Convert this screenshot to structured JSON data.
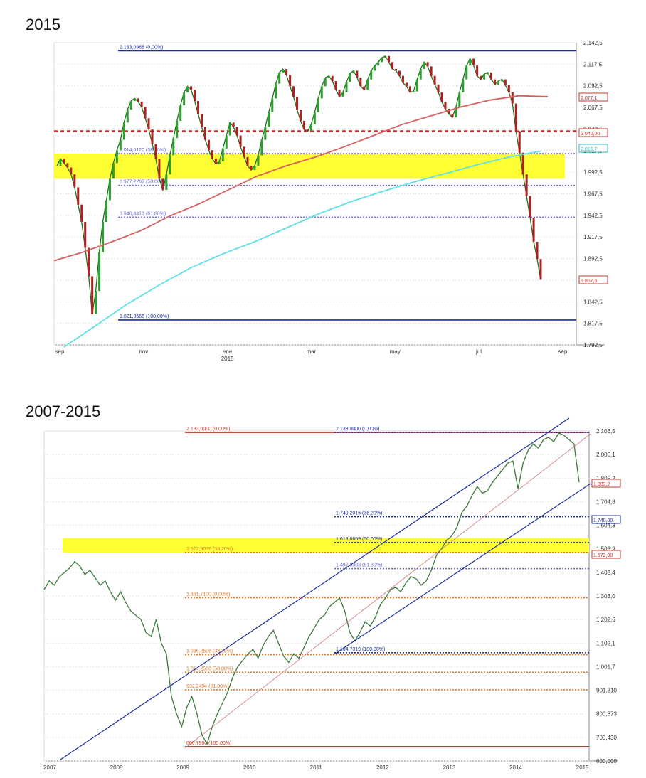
{
  "chart_data": [
    {
      "type": "line",
      "title": "2015",
      "ylim": [
        1792.5,
        2142.5
      ],
      "y_ticks": [
        "2.142,5",
        "2.117,5",
        "2.092,5",
        "2.067,5",
        "2.042,5",
        "2.017,5",
        "1.992,5",
        "1.967,5",
        "1.942,5",
        "1.917,5",
        "1.892,5",
        "1.867,5",
        "1.842,5",
        "1.817,5",
        "1.792,5"
      ],
      "x_tick_labels": [
        "sep",
        "nov",
        "ene",
        "mar",
        "may",
        "jul",
        "sep"
      ],
      "x_tick_sub": "2015",
      "fib_levels": [
        {
          "label": "2.133,0968  (0,00%)",
          "value": 2133.1,
          "color": "#1a2d9c"
        },
        {
          "label": "2.014,0120  (38,20%)",
          "value": 2014.0,
          "color": "#6b6bd6"
        },
        {
          "label": "1.977,2267  (50,00%)",
          "value": 1977.2,
          "color": "#6b6bd6"
        },
        {
          "label": "1.940,4413  (61,80%)",
          "value": 1940.4,
          "color": "#6b6bd6"
        },
        {
          "label": "1.821,3565  (100,00%)",
          "value": 1821.4,
          "color": "#1a2d9c"
        }
      ],
      "support_level": {
        "value": 2040.0,
        "color": "#d42a2a"
      },
      "highlight_band": {
        "from": 1985,
        "to": 2014,
        "color": "#ffff33"
      },
      "value_tags": [
        {
          "label": "2.077,1",
          "color": "#c0392b"
        },
        {
          "label": "2.040,00",
          "color": "#c0392b"
        },
        {
          "label": "2.016,7",
          "color": "#2bb8c8"
        },
        {
          "label": "1.867,6",
          "color": "#c0392b"
        }
      ],
      "series": [
        {
          "values": [
            2000,
            2008,
            2003,
            1998,
            1990,
            1975,
            1955,
            1935,
            1905,
            1872,
            1828,
            1855,
            1900,
            1935,
            1960,
            1985,
            2003,
            2018,
            2030,
            2050,
            2065,
            2075,
            2078,
            2074,
            2068,
            2055,
            2042,
            2025,
            2008,
            1985,
            1972,
            1990,
            2012,
            2032,
            2052,
            2070,
            2085,
            2092,
            2088,
            2075,
            2060,
            2045,
            2030,
            2018,
            2008,
            2002,
            2005,
            2020,
            2035,
            2050,
            2045,
            2035,
            2022,
            2010,
            2000,
            1995,
            2000,
            2012,
            2030,
            2045,
            2062,
            2078,
            2095,
            2108,
            2112,
            2105,
            2092,
            2080,
            2065,
            2052,
            2042,
            2040,
            2048,
            2062,
            2078,
            2092,
            2102,
            2104,
            2098,
            2088,
            2080,
            2085,
            2097,
            2107,
            2110,
            2102,
            2092,
            2088,
            2100,
            2110,
            2116,
            2120,
            2125,
            2127,
            2120,
            2112,
            2110,
            2104,
            2096,
            2092,
            2085,
            2086,
            2100,
            2112,
            2120,
            2115,
            2104,
            2094,
            2085,
            2074,
            2066,
            2060,
            2056,
            2068,
            2085,
            2100,
            2116,
            2124,
            2116,
            2104,
            2100,
            2106,
            2108,
            2100,
            2094,
            2098,
            2100,
            2093,
            2085,
            2072,
            2040,
            2015,
            1990,
            1965,
            1940,
            1912,
            1892,
            1868
          ]
        },
        {
          "values": [
            1890,
            1900,
            1912,
            1925,
            1942,
            1956,
            1972,
            1988,
            2000,
            2010,
            2022,
            2035,
            2048,
            2058,
            2068,
            2076,
            2081,
            2080
          ]
        },
        {
          "values": [
            1790,
            1815,
            1840,
            1862,
            1882,
            1898,
            1912,
            1928,
            1944,
            1958,
            1970,
            1981,
            1991,
            2001,
            2010,
            2017
          ]
        }
      ]
    },
    {
      "type": "line",
      "title": "2007-2015",
      "ylim": [
        600,
        2140
      ],
      "y_ticks": [
        "2.106,5",
        "2.006,1",
        "1.805,2",
        "1.704,8",
        "1.604,3",
        "1.503,9",
        "1.403,4",
        "1.303,0",
        "1.202,6",
        "1.102,1",
        "1.001,7",
        "901,310",
        "800,873",
        "700,430",
        "600,000"
      ],
      "x_tick_labels": [
        "2007",
        "2008",
        "2009",
        "2010",
        "2011",
        "2012",
        "2013",
        "2014",
        "2015"
      ],
      "fib_levels": [
        {
          "label": "2.133,0000  (0,00%)",
          "value": 2133,
          "color": "#c0392b"
        },
        {
          "label": "2.133,0000  (0,00%)",
          "value": 2133,
          "color": "#1a2d9c"
        },
        {
          "label": "1.740,2016  (38,20%)",
          "value": 1740,
          "color": "#1a2d9c"
        },
        {
          "label": "1.618,8659  (50,00%)",
          "value": 1619,
          "color": "#1a2d9c"
        },
        {
          "label": "1.497,5303  (61,80%)",
          "value": 1497,
          "color": "#6b6bd6"
        },
        {
          "label": "1.104,7319  (100,00%)",
          "value": 1105,
          "color": "#1a2d9c"
        },
        {
          "label": "1.572,9076  (38,20%)",
          "value": 1573,
          "color": "#d97a30"
        },
        {
          "label": "1.361,7100  (0,00%)",
          "value": 1362,
          "color": "#d97a30"
        },
        {
          "label": "1.096,2506  (38,20%)",
          "value": 1096,
          "color": "#d97a30"
        },
        {
          "label": "1.014,2500  (50,00%)",
          "value": 1014,
          "color": "#d97a30"
        },
        {
          "label": "932,2494  (61,80%)",
          "value": 932,
          "color": "#d97a30"
        },
        {
          "label": "666,7900  (100,00%)",
          "value": 667,
          "color": "#c0392b"
        }
      ],
      "highlight_band": {
        "from": 1572,
        "to": 1640,
        "color": "#ffff33"
      },
      "value_tags": [
        {
          "label": "1.893,2",
          "color": "#c0392b"
        },
        {
          "label": "1.740,00",
          "color": "#1a2d9c"
        },
        {
          "label": "1.572,90",
          "color": "#c0392b"
        }
      ],
      "series": [
        {
          "values": [
            1400,
            1440,
            1420,
            1460,
            1480,
            1500,
            1530,
            1510,
            1470,
            1490,
            1455,
            1420,
            1440,
            1390,
            1350,
            1390,
            1340,
            1300,
            1280,
            1260,
            1200,
            1180,
            1260,
            1150,
            1100,
            900,
            820,
            760,
            850,
            900,
            820,
            720,
            680,
            760,
            820,
            870,
            920,
            990,
            1040,
            1070,
            1100,
            1120,
            1080,
            1140,
            1180,
            1210,
            1150,
            1090,
            1060,
            1100,
            1080,
            1130,
            1180,
            1220,
            1260,
            1280,
            1320,
            1340,
            1360,
            1300,
            1200,
            1160,
            1200,
            1250,
            1230,
            1270,
            1330,
            1360,
            1400,
            1410,
            1390,
            1430,
            1460,
            1450,
            1420,
            1440,
            1490,
            1560,
            1590,
            1630,
            1650,
            1690,
            1760,
            1790,
            1840,
            1880,
            1850,
            1860,
            1900,
            1930,
            1960,
            1990,
            2000,
            1870,
            1990,
            2050,
            2080,
            2060,
            2100,
            2110,
            2090,
            2130,
            2120,
            2100,
            2080,
            1900
          ]
        }
      ]
    }
  ]
}
